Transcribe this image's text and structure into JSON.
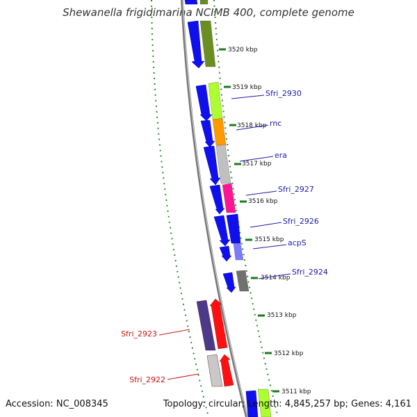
{
  "title": "Shewanella frigidimarina NCIMB 400, complete genome",
  "footer": {
    "accession_label": "Accession:",
    "accession": "NC_008345",
    "topology_label": "Topology:",
    "topology": "circular",
    "length_label": "Length:",
    "length": "4,845,257 bp",
    "genes_label": "Genes:",
    "genes": "4,161"
  },
  "ticks": [
    "3520 kbp",
    "3519 kbp",
    "3518 kbp",
    "3517 kbp",
    "3516 kbp",
    "3515 kbp",
    "3514 kbp",
    "3513 kbp",
    "3512 kbp",
    "3511 kbp"
  ],
  "gene_labels": [
    "Sfri_2930",
    "rnc",
    "era",
    "Sfri_2927",
    "Sfri_2926",
    "acpS",
    "Sfri_2924",
    "Sfri_2923",
    "Sfri_2922"
  ],
  "colors": {
    "forward_strand": "#1010ee",
    "reverse_strand": "#ee1010",
    "forward_label": "#1a1aaa",
    "reverse_label": "#cc1111",
    "tick": "#1a7a1a",
    "backbone": "#888888"
  }
}
